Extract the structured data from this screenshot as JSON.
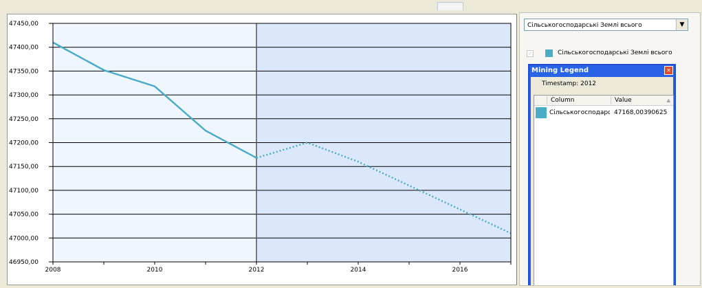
{
  "chart_data": {
    "type": "line",
    "x": [
      2008,
      2009,
      2010,
      2011,
      2012,
      2013,
      2014,
      2015,
      2016,
      2017
    ],
    "series": [
      {
        "name": "Сільськогосподарські Землі всього",
        "color": "#4bacc6",
        "actual": [
          47410,
          47352,
          47318,
          47225,
          47168
        ],
        "forecast": [
          47168,
          47200,
          47160,
          47110,
          47060,
          47010
        ]
      }
    ],
    "forecast_start": 2012,
    "ylim": [
      46950,
      47450
    ],
    "yticks": [
      "47450,00",
      "47400,00",
      "47350,00",
      "47300,00",
      "47250,00",
      "47200,00",
      "47150,00",
      "47100,00",
      "47050,00",
      "47000,00",
      "46950,00"
    ],
    "xticks": [
      "2008",
      "2010",
      "2012",
      "2014",
      "2016"
    ],
    "grid": true
  },
  "selector": {
    "value": "Сільськогосподарські Землі всього"
  },
  "legend": {
    "label": "Сільськогосподарські Землі всього",
    "color": "#4bacc6"
  },
  "mining_legend": {
    "title": "Mining Legend",
    "timestamp": "Timestamp: 2012",
    "columns": [
      "Column",
      "Value"
    ],
    "rows": [
      {
        "column": "Сільськогосподарські...",
        "value": "47168,00390625"
      }
    ]
  }
}
